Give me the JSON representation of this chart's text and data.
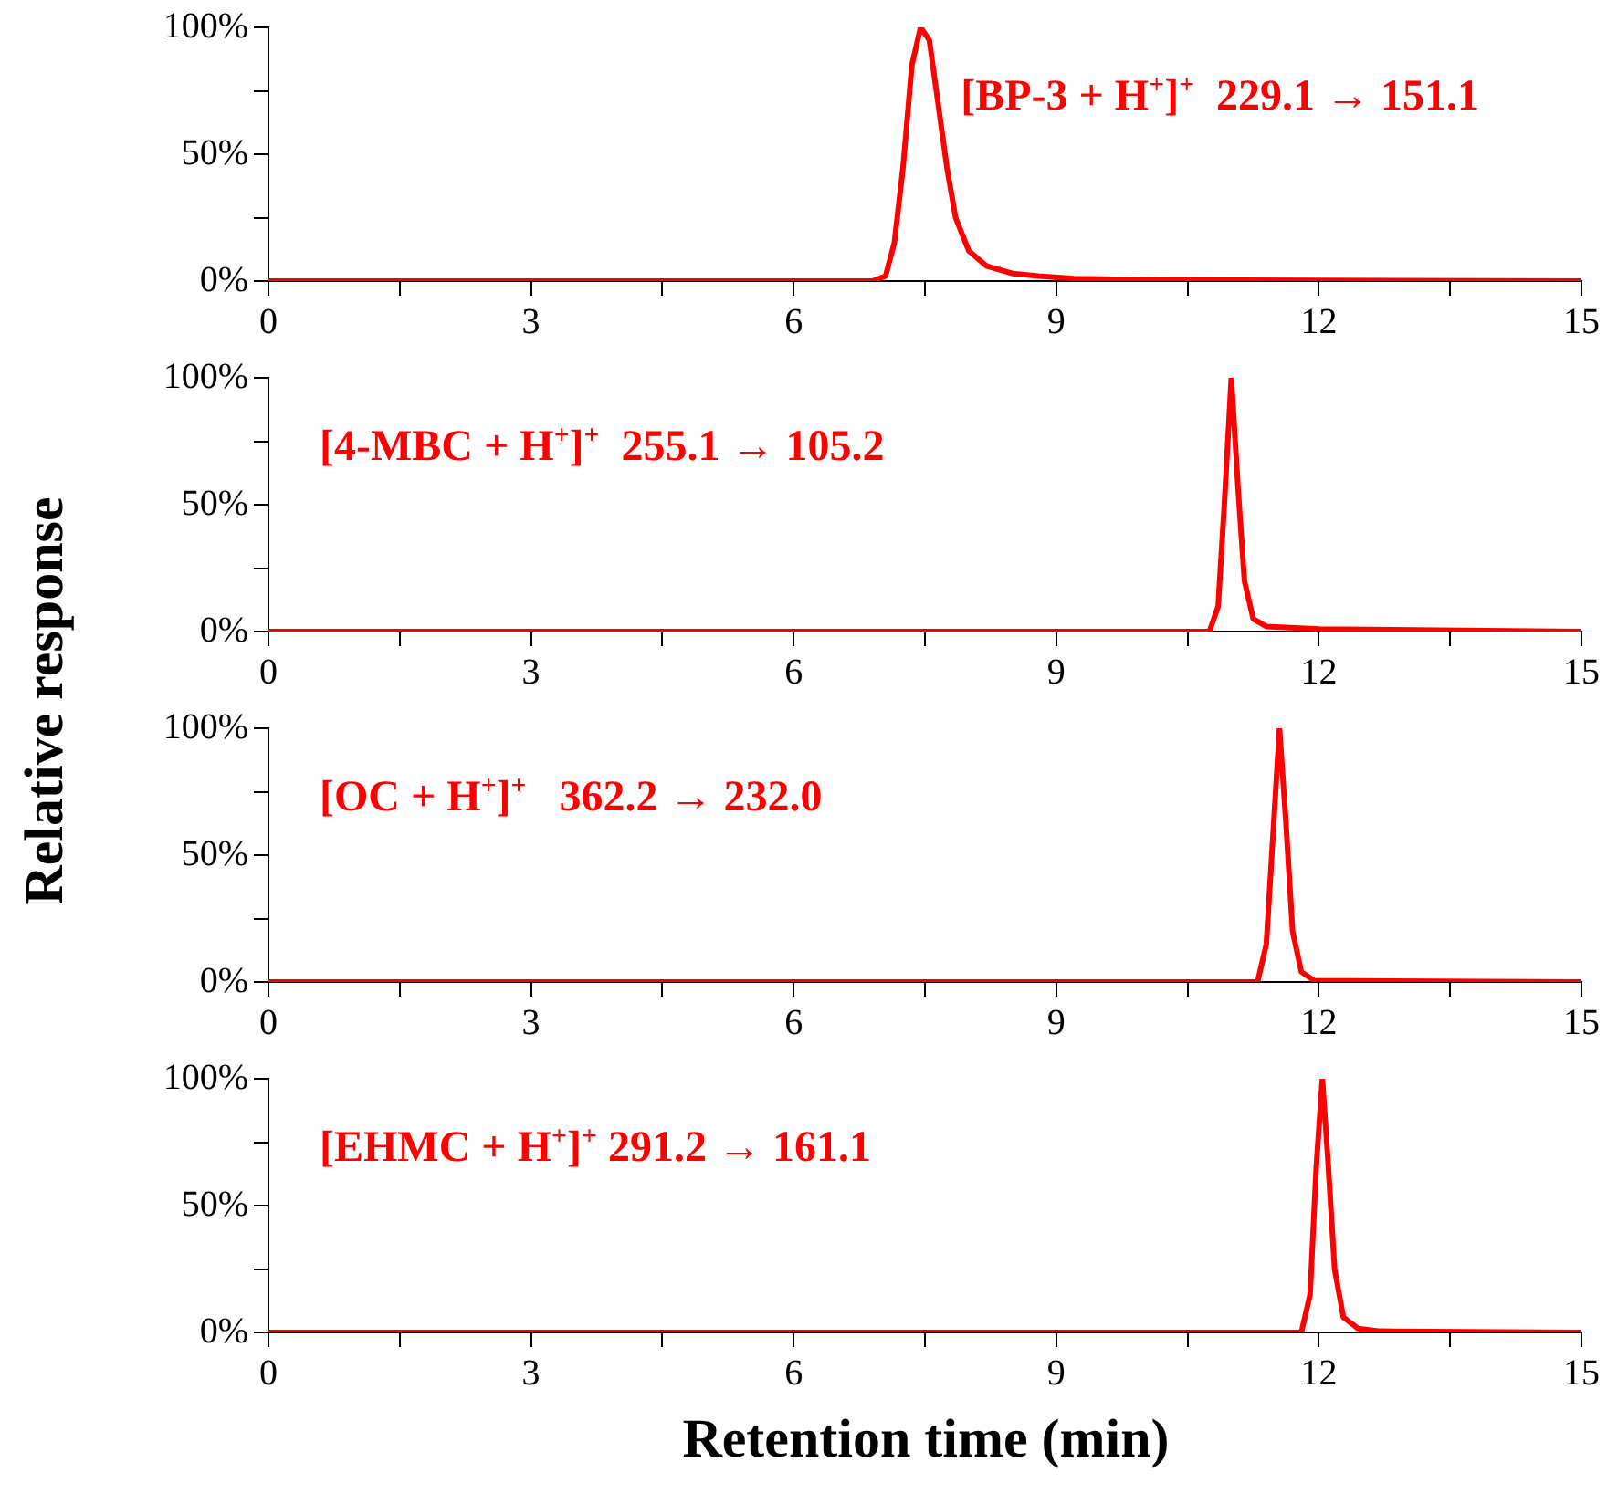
{
  "chart_data": [
    {
      "type": "line",
      "ylabel": "Relative response",
      "xlim": [
        0,
        15
      ],
      "xticks": [
        0,
        {
          "value": 1.5,
          "label": null
        },
        3,
        {
          "value": 4.5,
          "label": null
        },
        6,
        {
          "value": 7.5,
          "label": null
        },
        9,
        {
          "value": 10.5,
          "label": null
        },
        12,
        {
          "value": 13.5,
          "label": null
        },
        15
      ],
      "ylim": [
        0,
        100
      ],
      "yticks": [
        {
          "value": 0,
          "label": "0%"
        },
        {
          "value": 25,
          "label": null
        },
        {
          "value": 50,
          "label": "50%"
        },
        {
          "value": 75,
          "label": null
        },
        {
          "value": 100,
          "label": "100%"
        }
      ],
      "grid": false,
      "legend": false,
      "series": [
        {
          "name": "[BP-3 + H$^{+}$]$^{+}$  229.1 → 151.1",
          "color": "#ff0000",
          "x": [
            0,
            6.9,
            7.05,
            7.15,
            7.25,
            7.35,
            7.45,
            7.55,
            7.65,
            7.75,
            7.85,
            8.0,
            8.2,
            8.5,
            8.8,
            9.2,
            10,
            15
          ],
          "values": [
            0,
            0,
            2,
            15,
            45,
            85,
            100,
            95,
            70,
            45,
            25,
            12,
            6,
            3,
            2,
            1,
            0.5,
            0
          ]
        }
      ]
    },
    {
      "type": "line",
      "xlim": [
        0,
        15
      ],
      "xticks": [
        0,
        {
          "value": 1.5,
          "label": null
        },
        3,
        {
          "value": 4.5,
          "label": null
        },
        6,
        {
          "value": 7.5,
          "label": null
        },
        9,
        {
          "value": 10.5,
          "label": null
        },
        12,
        {
          "value": 13.5,
          "label": null
        },
        15
      ],
      "ylim": [
        0,
        100
      ],
      "yticks": [
        {
          "value": 0,
          "label": "0%"
        },
        {
          "value": 25,
          "label": null
        },
        {
          "value": 50,
          "label": "50%"
        },
        {
          "value": 75,
          "label": null
        },
        {
          "value": 100,
          "label": "100%"
        }
      ],
      "grid": false,
      "legend": false,
      "series": [
        {
          "name": "[4-MBC + H$^{+}$]$^{+}$  255.1 → 105.2",
          "color": "#ff0000",
          "x": [
            0,
            10.75,
            10.85,
            10.92,
            11.0,
            11.08,
            11.15,
            11.25,
            11.4,
            12,
            15
          ],
          "values": [
            0,
            0,
            10,
            50,
            100,
            55,
            20,
            5,
            2,
            1,
            0
          ]
        }
      ]
    },
    {
      "type": "line",
      "xlim": [
        0,
        15
      ],
      "xticks": [
        0,
        {
          "value": 1.5,
          "label": null
        },
        3,
        {
          "value": 4.5,
          "label": null
        },
        6,
        {
          "value": 7.5,
          "label": null
        },
        9,
        {
          "value": 10.5,
          "label": null
        },
        12,
        {
          "value": 13.5,
          "label": null
        },
        15
      ],
      "ylim": [
        0,
        100
      ],
      "yticks": [
        {
          "value": 0,
          "label": "0%"
        },
        {
          "value": 25,
          "label": null
        },
        {
          "value": 50,
          "label": "50%"
        },
        {
          "value": 75,
          "label": null
        },
        {
          "value": 100,
          "label": "100%"
        }
      ],
      "grid": false,
      "legend": false,
      "series": [
        {
          "name": "[OC + H$^{+}$]$^{+}$   362.2 → 232.0",
          "color": "#ff0000",
          "x": [
            0,
            11.3,
            11.4,
            11.48,
            11.55,
            11.62,
            11.7,
            11.8,
            11.95,
            15
          ],
          "values": [
            0,
            0,
            15,
            60,
            100,
            65,
            20,
            4,
            0.5,
            0
          ]
        }
      ]
    },
    {
      "type": "line",
      "xlabel": "Retention time (min)",
      "xlim": [
        0,
        15
      ],
      "xticks": [
        0,
        {
          "value": 1.5,
          "label": null
        },
        3,
        {
          "value": 4.5,
          "label": null
        },
        6,
        {
          "value": 7.5,
          "label": null
        },
        9,
        {
          "value": 10.5,
          "label": null
        },
        12,
        {
          "value": 13.5,
          "label": null
        },
        15
      ],
      "ylim": [
        0,
        100
      ],
      "yticks": [
        {
          "value": 0,
          "label": "0%"
        },
        {
          "value": 25,
          "label": null
        },
        {
          "value": 50,
          "label": "50%"
        },
        {
          "value": 75,
          "label": null
        },
        {
          "value": 100,
          "label": "100%"
        }
      ],
      "grid": false,
      "legend": false,
      "series": [
        {
          "name": "[EHMC + H$^{+}$]$^{+}$ 291.2 → 161.1",
          "color": "#ff0000",
          "x": [
            0,
            11.8,
            11.9,
            11.97,
            12.04,
            12.1,
            12.18,
            12.28,
            12.45,
            12.7,
            15
          ],
          "values": [
            0,
            0,
            15,
            65,
            100,
            70,
            25,
            6,
            1.5,
            0.5,
            0
          ]
        }
      ]
    }
  ]
}
